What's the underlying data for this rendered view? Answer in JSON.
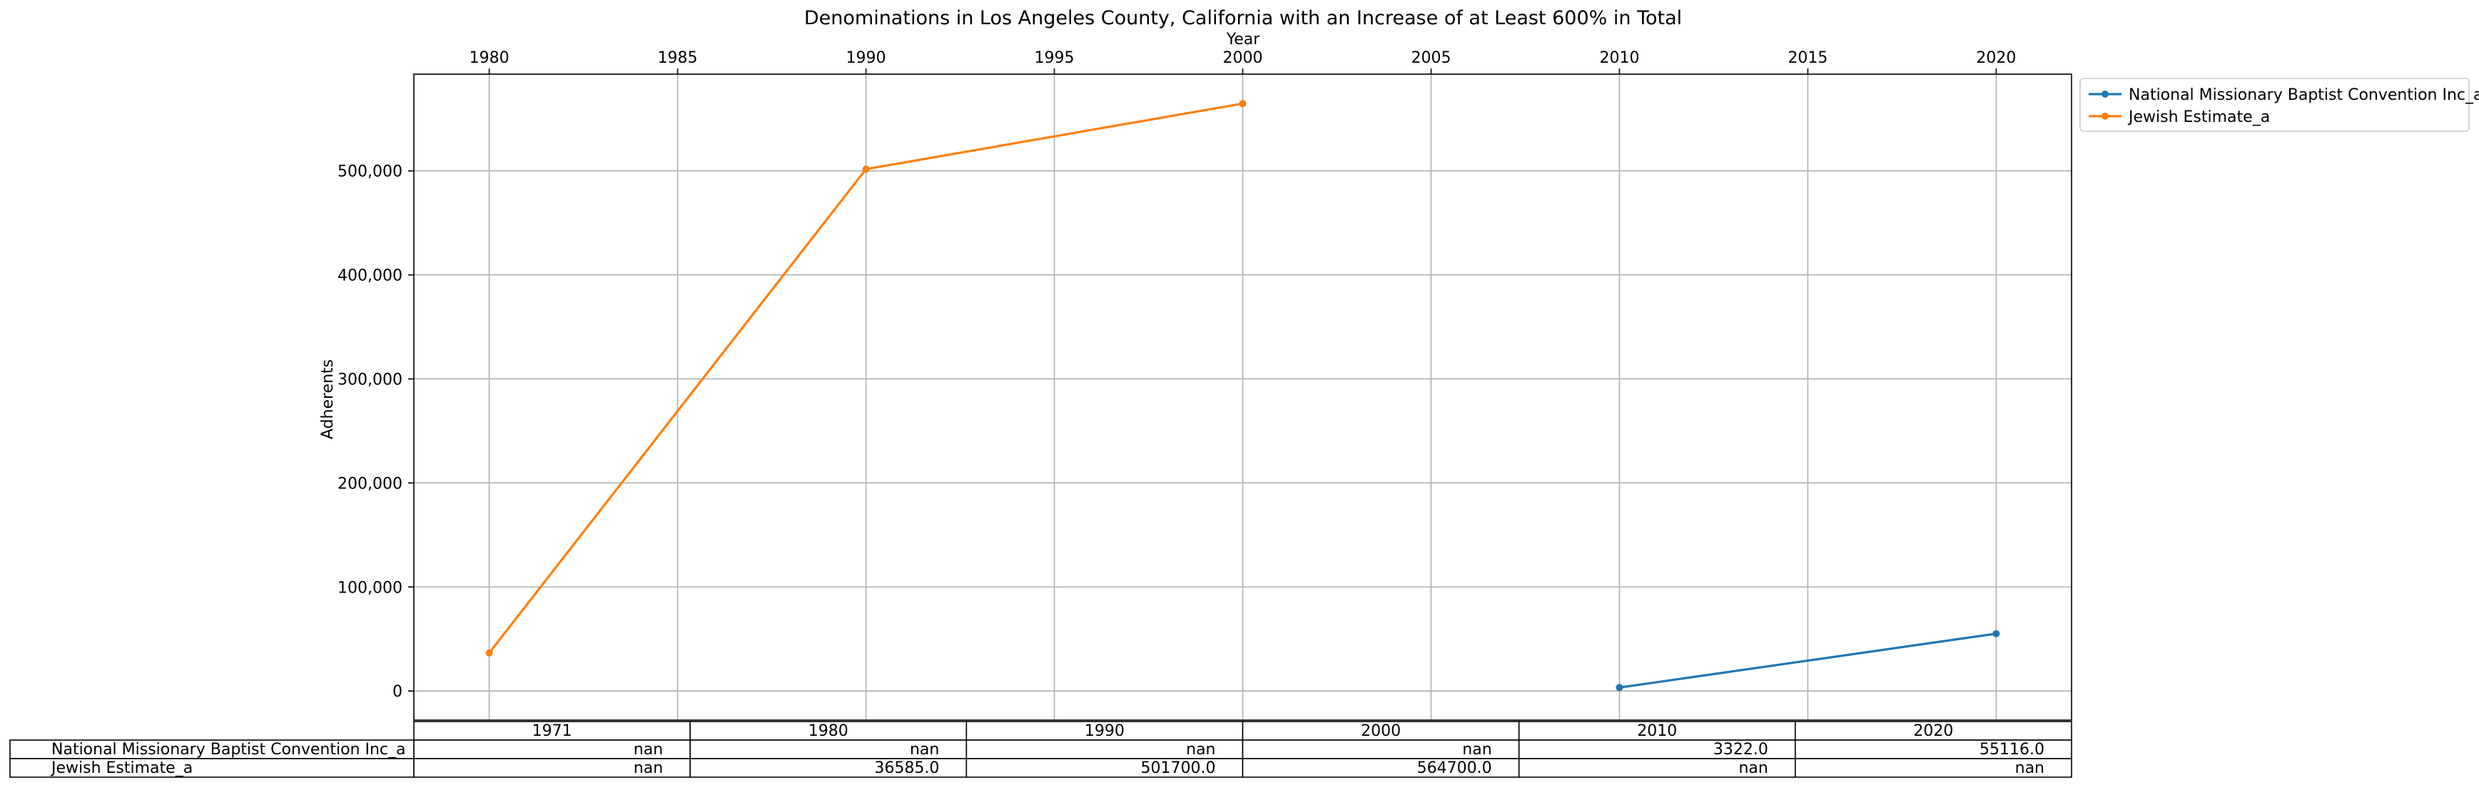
{
  "chart_data": {
    "type": "line",
    "title": "Denominations in Los Angeles County, California with an Increase of at Least 600% in Total",
    "xlabel": "Year",
    "ylabel": "Adherents",
    "xlim": [
      1978,
      2022
    ],
    "ylim": [
      -28000,
      593000
    ],
    "x_ticks": [
      1980,
      1985,
      1990,
      1995,
      2000,
      2005,
      2010,
      2015,
      2020
    ],
    "x_tick_labels": [
      "1980",
      "1985",
      "1990",
      "1995",
      "2000",
      "2005",
      "2010",
      "2015",
      "2020"
    ],
    "y_ticks": [
      0,
      100000,
      200000,
      300000,
      400000,
      500000
    ],
    "y_tick_labels": [
      "0",
      "100,000",
      "200,000",
      "300,000",
      "400,000",
      "500,000"
    ],
    "grid": true,
    "legend_position": "outside-top-right",
    "series": [
      {
        "name": "National Missionary Baptist Convention Inc_a",
        "color": "#1f77b4",
        "points": [
          [
            2010,
            3322.0
          ],
          [
            2020,
            55116.0
          ]
        ]
      },
      {
        "name": "Jewish Estimate_a",
        "color": "#ff7f0e",
        "points": [
          [
            1980,
            36585.0
          ],
          [
            1990,
            501700.0
          ],
          [
            2000,
            564700.0
          ]
        ]
      }
    ],
    "table": {
      "columns": [
        "1971",
        "1980",
        "1990",
        "2000",
        "2010",
        "2020"
      ],
      "rows": [
        {
          "label": "National Missionary Baptist Convention Inc_a",
          "cells": [
            "nan",
            "nan",
            "nan",
            "nan",
            "3322.0",
            "55116.0"
          ]
        },
        {
          "label": "Jewish Estimate_a",
          "cells": [
            "nan",
            "36585.0",
            "501700.0",
            "564700.0",
            "nan",
            "nan"
          ]
        }
      ]
    }
  }
}
